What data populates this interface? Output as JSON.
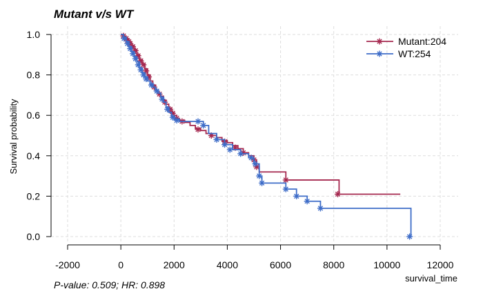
{
  "chart_data": {
    "type": "line",
    "title": "Mutant v/s WT",
    "xlabel": "survival_time",
    "ylabel": "Survival probability",
    "xlim": [
      -2000,
      12000
    ],
    "ylim": [
      0.0,
      1.0
    ],
    "x_ticks": [
      "-2000",
      "0",
      "2000",
      "4000",
      "6000",
      "8000",
      "10000",
      "12000"
    ],
    "y_ticks": [
      "0.0",
      "0.2",
      "0.4",
      "0.6",
      "0.8",
      "1.0"
    ],
    "grid": true,
    "legend_position": "top-right",
    "annotation": "P-value: 0.509; HR: 0.898",
    "series": [
      {
        "name": "Mutant:204",
        "color": "#a5284f",
        "steps": [
          [
            0,
            1.0
          ],
          [
            100,
            0.99
          ],
          [
            200,
            0.975
          ],
          [
            300,
            0.96
          ],
          [
            400,
            0.945
          ],
          [
            500,
            0.925
          ],
          [
            600,
            0.9
          ],
          [
            700,
            0.875
          ],
          [
            800,
            0.855
          ],
          [
            900,
            0.83
          ],
          [
            1000,
            0.8
          ],
          [
            1100,
            0.77
          ],
          [
            1200,
            0.75
          ],
          [
            1300,
            0.725
          ],
          [
            1400,
            0.71
          ],
          [
            1500,
            0.695
          ],
          [
            1600,
            0.675
          ],
          [
            1700,
            0.655
          ],
          [
            1800,
            0.635
          ],
          [
            1900,
            0.615
          ],
          [
            2000,
            0.6
          ],
          [
            2100,
            0.585
          ],
          [
            2200,
            0.575
          ],
          [
            2400,
            0.565
          ],
          [
            2600,
            0.55
          ],
          [
            2800,
            0.535
          ],
          [
            3000,
            0.525
          ],
          [
            3200,
            0.51
          ],
          [
            3400,
            0.5
          ],
          [
            3600,
            0.49
          ],
          [
            3800,
            0.475
          ],
          [
            4000,
            0.465
          ],
          [
            4200,
            0.45
          ],
          [
            4400,
            0.435
          ],
          [
            4600,
            0.415
          ],
          [
            4800,
            0.4
          ],
          [
            5000,
            0.38
          ],
          [
            5100,
            0.345
          ],
          [
            5200,
            0.32
          ],
          [
            6200,
            0.28
          ],
          [
            8200,
            0.21
          ],
          [
            10500,
            0.21
          ]
        ],
        "censored": [
          [
            100,
            0.993
          ],
          [
            200,
            0.98
          ],
          [
            250,
            0.97
          ],
          [
            300,
            0.965
          ],
          [
            350,
            0.955
          ],
          [
            450,
            0.94
          ],
          [
            550,
            0.92
          ],
          [
            650,
            0.895
          ],
          [
            750,
            0.87
          ],
          [
            850,
            0.85
          ],
          [
            950,
            0.82
          ],
          [
            1050,
            0.79
          ],
          [
            1250,
            0.74
          ],
          [
            1450,
            0.705
          ],
          [
            1650,
            0.665
          ],
          [
            1850,
            0.63
          ],
          [
            1950,
            0.61
          ],
          [
            2100,
            0.585
          ],
          [
            2300,
            0.57
          ],
          [
            2900,
            0.53
          ],
          [
            3400,
            0.5
          ],
          [
            3900,
            0.47
          ],
          [
            4300,
            0.44
          ],
          [
            4600,
            0.415
          ],
          [
            5000,
            0.38
          ],
          [
            5100,
            0.345
          ],
          [
            6200,
            0.28
          ],
          [
            8150,
            0.21
          ]
        ]
      },
      {
        "name": "WT:254",
        "color": "#3d6cc8",
        "steps": [
          [
            0,
            1.0
          ],
          [
            100,
            0.985
          ],
          [
            200,
            0.965
          ],
          [
            300,
            0.94
          ],
          [
            400,
            0.915
          ],
          [
            500,
            0.89
          ],
          [
            600,
            0.865
          ],
          [
            700,
            0.835
          ],
          [
            800,
            0.81
          ],
          [
            900,
            0.79
          ],
          [
            1000,
            0.77
          ],
          [
            1100,
            0.755
          ],
          [
            1200,
            0.74
          ],
          [
            1300,
            0.725
          ],
          [
            1400,
            0.71
          ],
          [
            1500,
            0.69
          ],
          [
            1600,
            0.665
          ],
          [
            1700,
            0.64
          ],
          [
            1800,
            0.615
          ],
          [
            1900,
            0.595
          ],
          [
            2000,
            0.58
          ],
          [
            2200,
            0.57
          ],
          [
            2800,
            0.57
          ],
          [
            3100,
            0.55
          ],
          [
            3300,
            0.51
          ],
          [
            3600,
            0.48
          ],
          [
            3900,
            0.455
          ],
          [
            4200,
            0.43
          ],
          [
            4500,
            0.41
          ],
          [
            4800,
            0.39
          ],
          [
            5000,
            0.36
          ],
          [
            5200,
            0.3
          ],
          [
            5300,
            0.265
          ],
          [
            6200,
            0.235
          ],
          [
            6600,
            0.2
          ],
          [
            7000,
            0.175
          ],
          [
            7500,
            0.14
          ],
          [
            10900,
            0.14
          ],
          [
            10900,
            0.0
          ]
        ],
        "censored": [
          [
            120,
            0.98
          ],
          [
            250,
            0.955
          ],
          [
            350,
            0.93
          ],
          [
            450,
            0.905
          ],
          [
            550,
            0.88
          ],
          [
            650,
            0.85
          ],
          [
            750,
            0.825
          ],
          [
            850,
            0.8
          ],
          [
            950,
            0.78
          ],
          [
            1150,
            0.75
          ],
          [
            1350,
            0.72
          ],
          [
            1550,
            0.68
          ],
          [
            1750,
            0.63
          ],
          [
            1950,
            0.59
          ],
          [
            2100,
            0.575
          ],
          [
            2900,
            0.57
          ],
          [
            3100,
            0.55
          ],
          [
            3600,
            0.48
          ],
          [
            3900,
            0.455
          ],
          [
            4100,
            0.43
          ],
          [
            4500,
            0.41
          ],
          [
            4900,
            0.39
          ],
          [
            5050,
            0.36
          ],
          [
            5200,
            0.3
          ],
          [
            5300,
            0.265
          ],
          [
            6200,
            0.235
          ],
          [
            6600,
            0.2
          ],
          [
            7000,
            0.175
          ],
          [
            7500,
            0.14
          ],
          [
            10850,
            0.0
          ]
        ]
      }
    ]
  }
}
